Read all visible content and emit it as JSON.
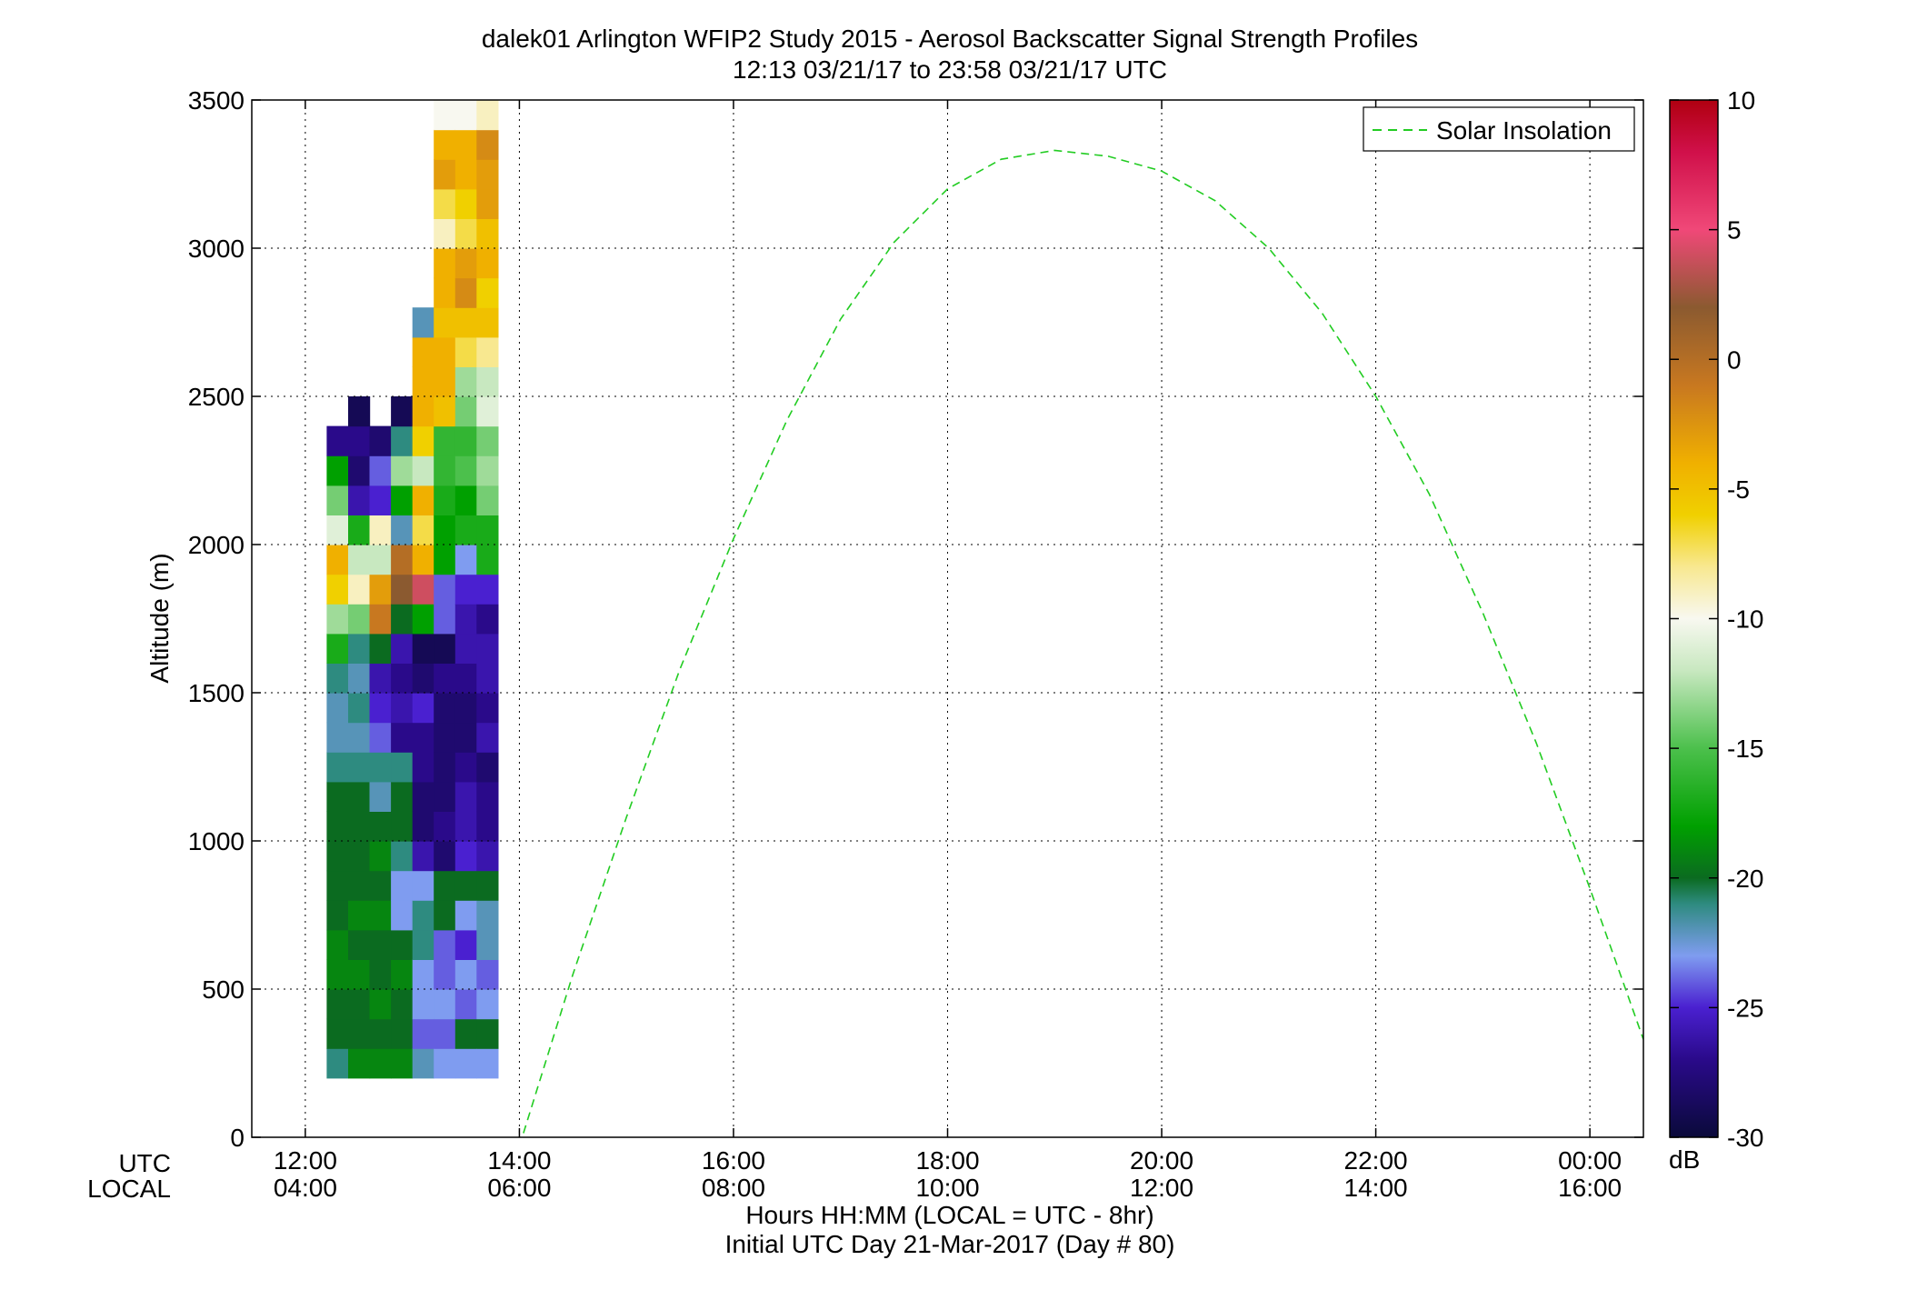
{
  "chart_data": {
    "type": "heatmap",
    "title": "dalek01 Arlington WFIP2 Study 2015 - Aerosol Backscatter Signal Strength Profiles",
    "subtitle": "12:13 03/21/17 to 23:58 03/21/17  UTC",
    "ylabel": "Altitude (m)",
    "xlabel": "Hours HH:MM  (LOCAL = UTC - 8hr)",
    "xlabel2": "Initial UTC Day 21-Mar-2017 (Day # 80)",
    "row_labels": [
      "UTC",
      "LOCAL"
    ],
    "x_unit": "hours UTC",
    "xlim": [
      11.5,
      24.5
    ],
    "ylim": [
      0,
      3500
    ],
    "x_ticks": [
      {
        "value": 12,
        "utc": "12:00",
        "local": "04:00"
      },
      {
        "value": 14,
        "utc": "14:00",
        "local": "06:00"
      },
      {
        "value": 16,
        "utc": "16:00",
        "local": "08:00"
      },
      {
        "value": 18,
        "utc": "18:00",
        "local": "10:00"
      },
      {
        "value": 20,
        "utc": "20:00",
        "local": "12:00"
      },
      {
        "value": 22,
        "utc": "22:00",
        "local": "14:00"
      },
      {
        "value": 24,
        "utc": "00:00",
        "local": "16:00"
      }
    ],
    "y_ticks": [
      "0",
      "500",
      "1000",
      "1500",
      "2000",
      "2500",
      "3000",
      "3500"
    ],
    "grid": true,
    "colorbar": {
      "range": [
        -30,
        10
      ],
      "ticks": [
        "10",
        "5",
        "0",
        "-5",
        "-10",
        "-15",
        "-20",
        "-25",
        "-30"
      ],
      "unit": "dB",
      "colormap": [
        {
          "v": -30,
          "c": "#0a0a3a"
        },
        {
          "v": -27,
          "c": "#2a0a8a"
        },
        {
          "v": -25,
          "c": "#4a20d0"
        },
        {
          "v": -23,
          "c": "#7f9cf0"
        },
        {
          "v": -21,
          "c": "#2e8b80"
        },
        {
          "v": -20,
          "c": "#0b6b20"
        },
        {
          "v": -18,
          "c": "#00a000"
        },
        {
          "v": -15,
          "c": "#4cc04c"
        },
        {
          "v": -12,
          "c": "#c8e8c0"
        },
        {
          "v": -10,
          "c": "#f8f8f0"
        },
        {
          "v": -8,
          "c": "#f8e890"
        },
        {
          "v": -6,
          "c": "#f0d000"
        },
        {
          "v": -4,
          "c": "#f0b000"
        },
        {
          "v": -1,
          "c": "#c87820"
        },
        {
          "v": 2,
          "c": "#8b5a30"
        },
        {
          "v": 5,
          "c": "#f04878"
        },
        {
          "v": 8,
          "c": "#d0104a"
        },
        {
          "v": 10,
          "c": "#b00010"
        }
      ]
    },
    "time_step_hours": 0.2,
    "altitude_step_m": 100,
    "columns": [
      {
        "t": 12.3,
        "z0": 200,
        "vals": [
          -21,
          -20,
          -20,
          -19,
          -19,
          -20,
          -20,
          -20,
          -20,
          -20,
          -21,
          -22,
          -22,
          -21,
          -17,
          -13,
          -6,
          -4,
          -11,
          -14,
          -18,
          -27
        ]
      },
      {
        "t": 12.5,
        "z0": 200,
        "vals": [
          -19,
          -20,
          -20,
          -19,
          -20,
          -19,
          -20,
          -20,
          -20,
          -20,
          -21,
          -22,
          -21,
          -22,
          -21,
          -14,
          -9,
          -12,
          -17,
          -26,
          -28,
          -27,
          -29
        ]
      },
      {
        "t": 12.7,
        "z0": 200,
        "vals": [
          -19,
          -20,
          -19,
          -20,
          -20,
          -19,
          -20,
          -19,
          -20,
          -22,
          -21,
          -24,
          -25,
          -26,
          -20,
          -1,
          -3,
          -12,
          -9,
          -25,
          -24,
          -28
        ]
      },
      {
        "t": 12.9,
        "z0": 200,
        "vals": [
          -19,
          -20,
          -20,
          -19,
          -20,
          -23,
          -23,
          -21,
          -20,
          -20,
          -21,
          -27,
          -26,
          -27,
          -26,
          -20,
          2,
          0,
          -22,
          -18,
          -13,
          -21,
          -29
        ]
      },
      {
        "t": 13.1,
        "z0": 200,
        "vals": [
          -22,
          -24,
          -23,
          -23,
          -21,
          -21,
          -23,
          -26,
          -28,
          -28,
          -27,
          -27,
          -25,
          -28,
          -29,
          -18,
          4,
          -4,
          -7,
          -4,
          -12,
          -6,
          -4,
          -4,
          -4,
          -22
        ]
      },
      {
        "t": 13.3,
        "z0": 200,
        "vals": [
          -23,
          -24,
          -23,
          -24,
          -24,
          -20,
          -20,
          -28,
          -27,
          -28,
          -28,
          -28,
          -28,
          -27,
          -29,
          -24,
          -24,
          -18,
          -18,
          -17,
          -16,
          -16,
          -5,
          -4,
          -4,
          -5,
          -4,
          -4,
          -9,
          -7,
          -3,
          -4,
          -10
        ]
      },
      {
        "t": 13.5,
        "z0": 200,
        "vals": [
          -23,
          -20,
          -24,
          -23,
          -25,
          -23,
          -20,
          -25,
          -26,
          -26,
          -27,
          -28,
          -28,
          -27,
          -26,
          -26,
          -25,
          -23,
          -17,
          -18,
          -15,
          -16,
          -14,
          -13,
          -7,
          -5,
          -2,
          -3,
          -7,
          -6,
          -4,
          -4,
          -10
        ]
      },
      {
        "t": 13.7,
        "z0": 200,
        "vals": [
          -23,
          -20,
          -23,
          -24,
          -22,
          -22,
          -20,
          -26,
          -27,
          -27,
          -28,
          -26,
          -27,
          -26,
          -26,
          -27,
          -25,
          -17,
          -17,
          -14,
          -13,
          -14,
          -11,
          -12,
          -8,
          -5,
          -6,
          -4,
          -5,
          -3,
          -3,
          -2,
          -9
        ]
      }
    ],
    "series": [
      {
        "name": "Solar Insolation",
        "type": "line",
        "style": "dashed",
        "color": "#22cc22",
        "x": [
          14.0,
          14.5,
          15.0,
          15.5,
          16.0,
          16.5,
          17.0,
          17.5,
          18.0,
          18.5,
          19.0,
          19.5,
          20.0,
          20.5,
          21.0,
          21.5,
          22.0,
          22.5,
          23.0,
          23.5,
          24.0,
          24.5
        ],
        "y": [
          -30,
          550,
          1080,
          1580,
          2020,
          2420,
          2760,
          3020,
          3200,
          3300,
          3330,
          3310,
          3260,
          3160,
          3000,
          2780,
          2500,
          2170,
          1770,
          1330,
          840,
          330
        ]
      }
    ],
    "legend": {
      "placement": "top-right",
      "entries": [
        "Solar Insolation"
      ]
    }
  }
}
